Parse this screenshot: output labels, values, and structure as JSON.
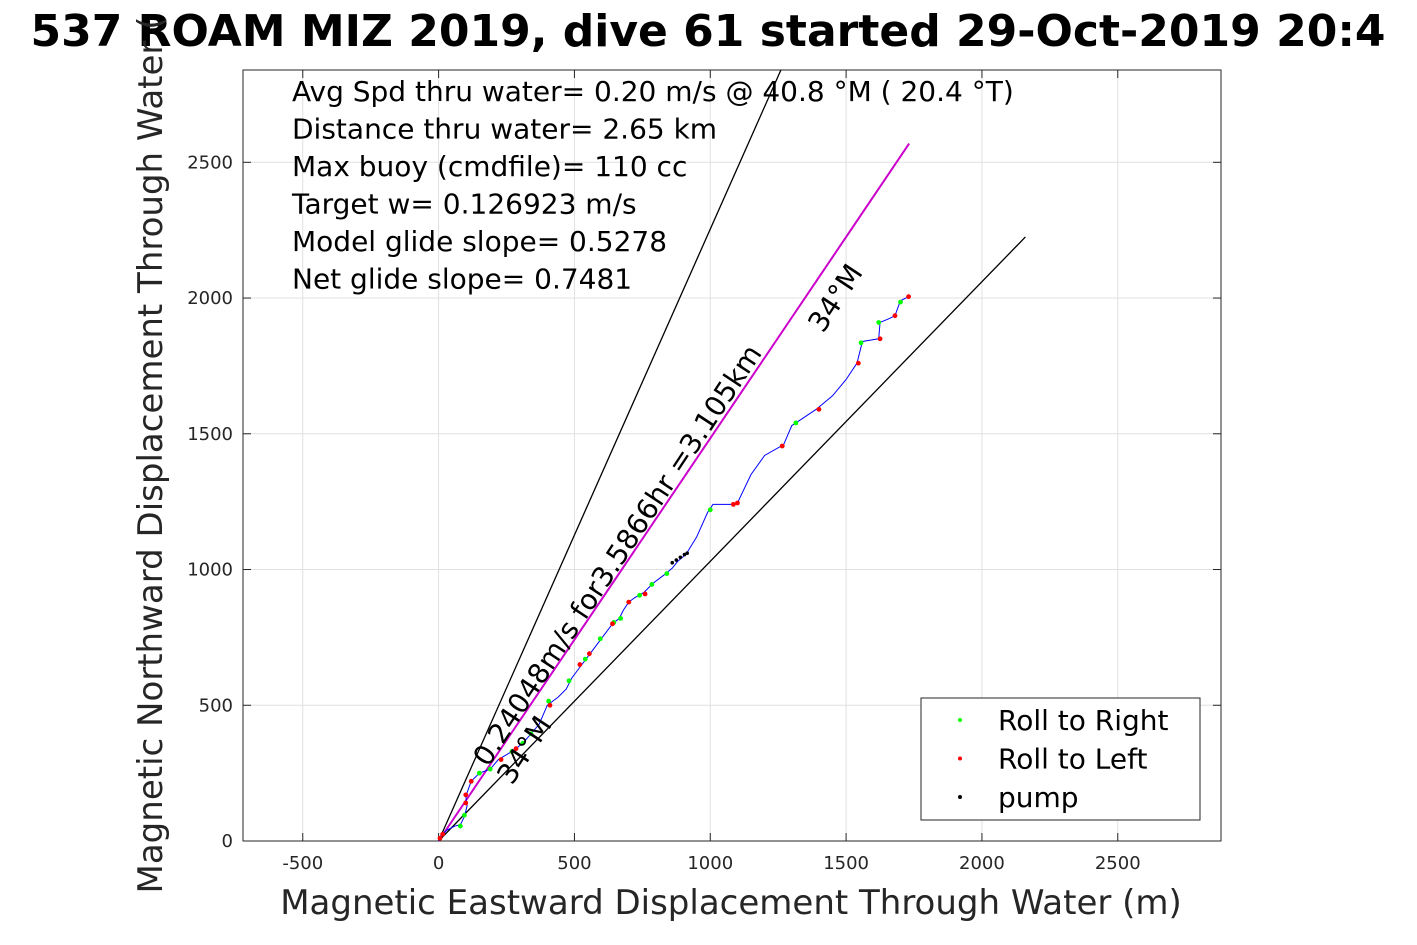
{
  "chart_data": {
    "type": "scatter",
    "title": "537 ROAM MIZ 2019, dive 61 started 29-Oct-2019 20:4",
    "xlabel": "Magnetic Eastward Displacement Through Water (m)",
    "ylabel": "Magnetic Northward Displacement Through Water (",
    "xlim": [
      -720,
      2880
    ],
    "ylim": [
      0,
      2840
    ],
    "xticks": [
      -500,
      0,
      500,
      1000,
      1500,
      2000,
      2500
    ],
    "yticks": [
      0,
      500,
      1000,
      1500,
      2000,
      2500
    ],
    "xtick_labels": [
      "-500",
      "0",
      "500",
      "1000",
      "1500",
      "2000",
      "2500"
    ],
    "ytick_labels": [
      "0",
      "500",
      "1000",
      "1500",
      "2000",
      "2500"
    ],
    "grid": true,
    "legend_position": "bottom-right",
    "stats": [
      "Avg Spd thru water=  0.20 m/s @  40.8 °M ( 20.4 °T)",
      "Distance thru water=  2.65 km",
      "Max buoy (cmdfile)= 110 cc",
      "Target w= 0.126923 m/s",
      "Model glide slope= 0.5278",
      "Net glide slope= 0.7481"
    ],
    "annotations": {
      "speed_line": "0.24048m/s for3.5866hr =3.105km",
      "angle_upper": "34°M",
      "angle_lower": "34°M"
    },
    "reference_lines": [
      {
        "name": "cone-left",
        "color": "#000000",
        "points": [
          [
            0,
            0
          ],
          [
            1260,
            2840
          ]
        ]
      },
      {
        "name": "heading",
        "color": "#cc00cc",
        "points": [
          [
            0,
            0
          ],
          [
            1732,
            2569
          ]
        ]
      },
      {
        "name": "cone-right",
        "color": "#000000",
        "points": [
          [
            0,
            0
          ],
          [
            2160,
            2225
          ]
        ]
      }
    ],
    "track": {
      "color": "#0000ff",
      "points": [
        [
          0,
          0
        ],
        [
          5,
          15
        ],
        [
          15,
          25
        ],
        [
          30,
          40
        ],
        [
          60,
          55
        ],
        [
          80,
          60
        ],
        [
          95,
          90
        ],
        [
          105,
          130
        ],
        [
          100,
          165
        ],
        [
          120,
          220
        ],
        [
          150,
          250
        ],
        [
          190,
          265
        ],
        [
          220,
          300
        ],
        [
          270,
          330
        ],
        [
          310,
          360
        ],
        [
          340,
          395
        ],
        [
          370,
          430
        ],
        [
          400,
          500
        ],
        [
          440,
          530
        ],
        [
          470,
          560
        ],
        [
          490,
          600
        ],
        [
          520,
          640
        ],
        [
          550,
          680
        ],
        [
          580,
          720
        ],
        [
          610,
          760
        ],
        [
          640,
          800
        ],
        [
          665,
          820
        ],
        [
          680,
          850
        ],
        [
          700,
          880
        ],
        [
          720,
          895
        ],
        [
          755,
          915
        ],
        [
          790,
          950
        ],
        [
          830,
          980
        ],
        [
          860,
          1005
        ],
        [
          880,
          1030
        ],
        [
          910,
          1055
        ],
        [
          950,
          1120
        ],
        [
          990,
          1210
        ],
        [
          1010,
          1240
        ],
        [
          1080,
          1240
        ],
        [
          1100,
          1245
        ],
        [
          1150,
          1350
        ],
        [
          1200,
          1420
        ],
        [
          1270,
          1460
        ],
        [
          1300,
          1530
        ],
        [
          1330,
          1550
        ],
        [
          1390,
          1590
        ],
        [
          1450,
          1640
        ],
        [
          1500,
          1700
        ],
        [
          1540,
          1760
        ],
        [
          1560,
          1840
        ],
        [
          1590,
          1845
        ],
        [
          1620,
          1850
        ],
        [
          1625,
          1910
        ],
        [
          1660,
          1925
        ],
        [
          1680,
          1935
        ],
        [
          1700,
          1990
        ],
        [
          1730,
          2005
        ]
      ]
    },
    "series": [
      {
        "name": "Roll to Right",
        "color": "#00ff00",
        "points": [
          [
            80,
            55
          ],
          [
            95,
            95
          ],
          [
            150,
            250
          ],
          [
            190,
            265
          ],
          [
            270,
            330
          ],
          [
            310,
            360
          ],
          [
            340,
            395
          ],
          [
            405,
            515
          ],
          [
            480,
            590
          ],
          [
            540,
            670
          ],
          [
            595,
            745
          ],
          [
            645,
            805
          ],
          [
            670,
            820
          ],
          [
            740,
            905
          ],
          [
            785,
            945
          ],
          [
            840,
            985
          ],
          [
            1000,
            1220
          ],
          [
            1315,
            1540
          ],
          [
            1555,
            1835
          ],
          [
            1620,
            1910
          ],
          [
            1700,
            1985
          ]
        ]
      },
      {
        "name": "Roll to Left",
        "color": "#ff0000",
        "points": [
          [
            5,
            10
          ],
          [
            15,
            25
          ],
          [
            100,
            140
          ],
          [
            120,
            220
          ],
          [
            100,
            170
          ],
          [
            230,
            300
          ],
          [
            285,
            340
          ],
          [
            410,
            500
          ],
          [
            520,
            650
          ],
          [
            555,
            690
          ],
          [
            640,
            800
          ],
          [
            700,
            880
          ],
          [
            760,
            910
          ],
          [
            1085,
            1240
          ],
          [
            1100,
            1245
          ],
          [
            1265,
            1455
          ],
          [
            1400,
            1590
          ],
          [
            1545,
            1760
          ],
          [
            1625,
            1850
          ],
          [
            1680,
            1935
          ],
          [
            1730,
            2005
          ]
        ]
      },
      {
        "name": "pump",
        "color": "#000000",
        "points": [
          [
            860,
            1025
          ],
          [
            875,
            1035
          ],
          [
            890,
            1045
          ],
          [
            905,
            1055
          ],
          [
            915,
            1060
          ]
        ]
      }
    ]
  }
}
